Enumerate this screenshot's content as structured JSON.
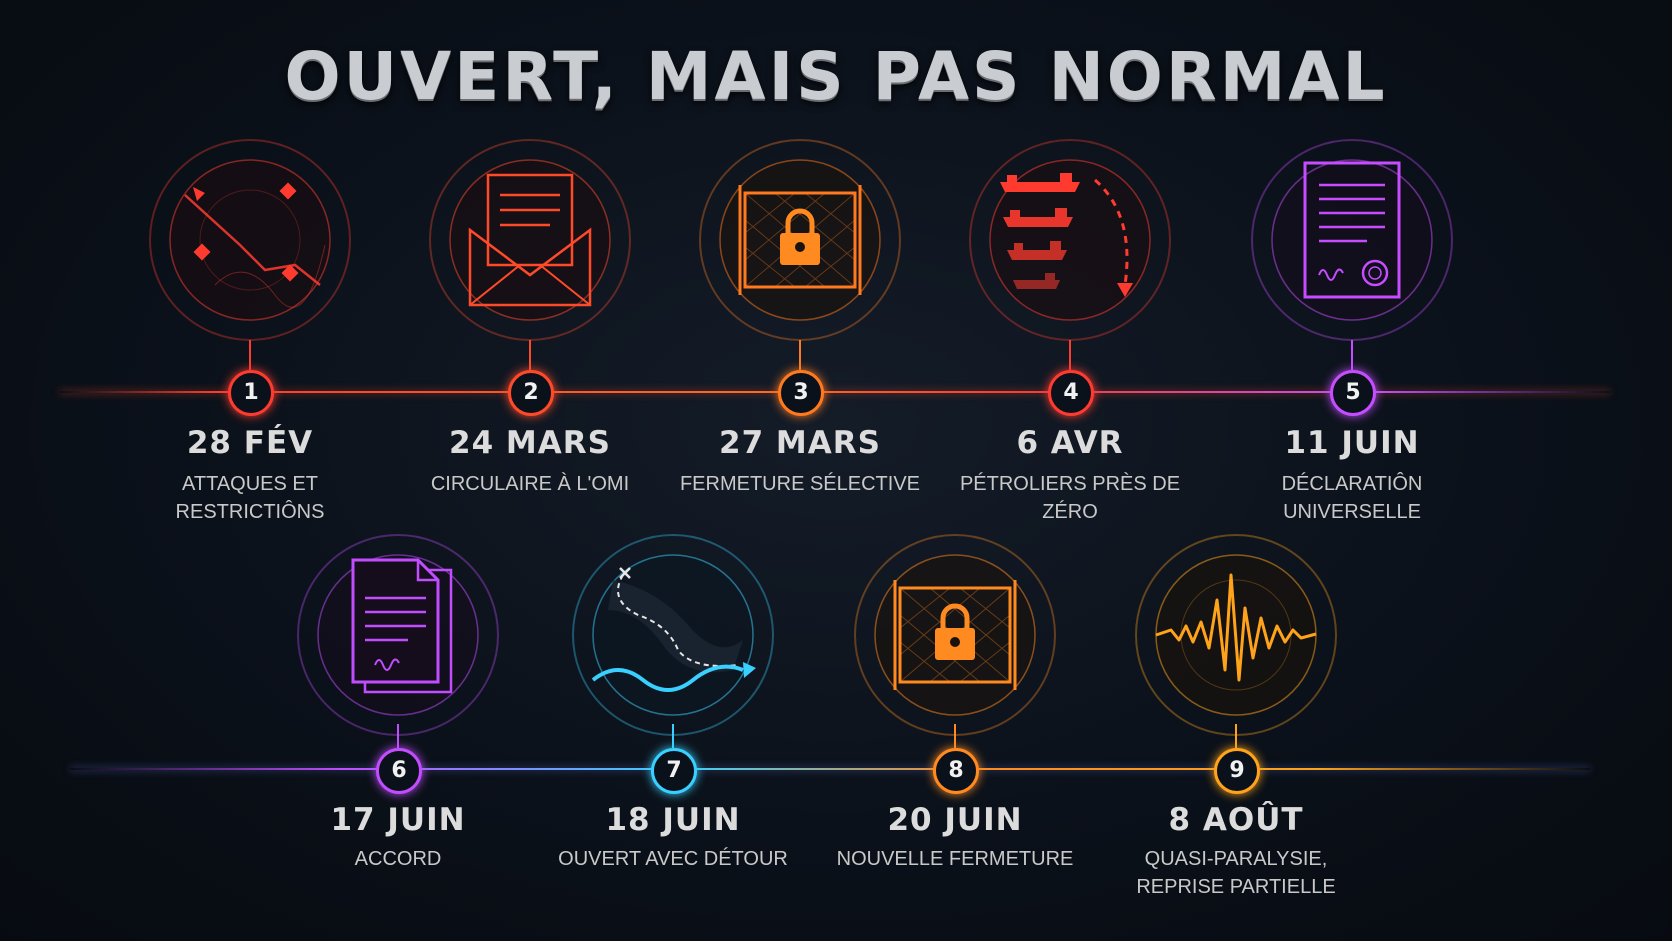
{
  "title": "OUVERT, MAIS PAS NORMAL",
  "events": [
    {
      "number": "1",
      "date": "28 FÉV",
      "label": "ATTAQUES ET RESTRICTIÔNS",
      "icon": "radar-map-icon",
      "color": "#ff3b2f"
    },
    {
      "number": "2",
      "date": "24 MARS",
      "label": "CIRCULAIRE À L'OMI",
      "icon": "envelope-letter-icon",
      "color": "#ff4a2a"
    },
    {
      "number": "3",
      "date": "27 MARS",
      "label": "FERMETURE SÉLECTIVE",
      "icon": "padlock-gate-icon",
      "color": "#ff7a1f"
    },
    {
      "number": "4",
      "date": "6 AVR",
      "label": "PÉTROLIERS PRÈS DE ZÉRO",
      "icon": "tanker-ships-icon",
      "color": "#ff3b2f"
    },
    {
      "number": "5",
      "date": "11 JUIN",
      "label": "DÉCLARATIÔN UNIVERSELLE",
      "icon": "signed-document-icon",
      "color": "#c64dff"
    },
    {
      "number": "6",
      "date": "17 JUIN",
      "label": "ACCORD",
      "icon": "agreement-documents-icon",
      "color": "#c14dff"
    },
    {
      "number": "7",
      "date": "18 JUIN",
      "label": "OUVERT AVEC DÉTOUR",
      "icon": "detour-route-icon",
      "color": "#39d0ff"
    },
    {
      "number": "8",
      "date": "20 JUIN",
      "label": "NOUVELLE FERMETURE",
      "icon": "padlock-gate-icon",
      "color": "#ff8a1f"
    },
    {
      "number": "9",
      "date": "8 AOÛT",
      "label": "QUASI-PARALYSIE,\nREPRISE PARTIELLE",
      "icon": "signal-wave-icon",
      "color": "#ffa31a"
    }
  ]
}
